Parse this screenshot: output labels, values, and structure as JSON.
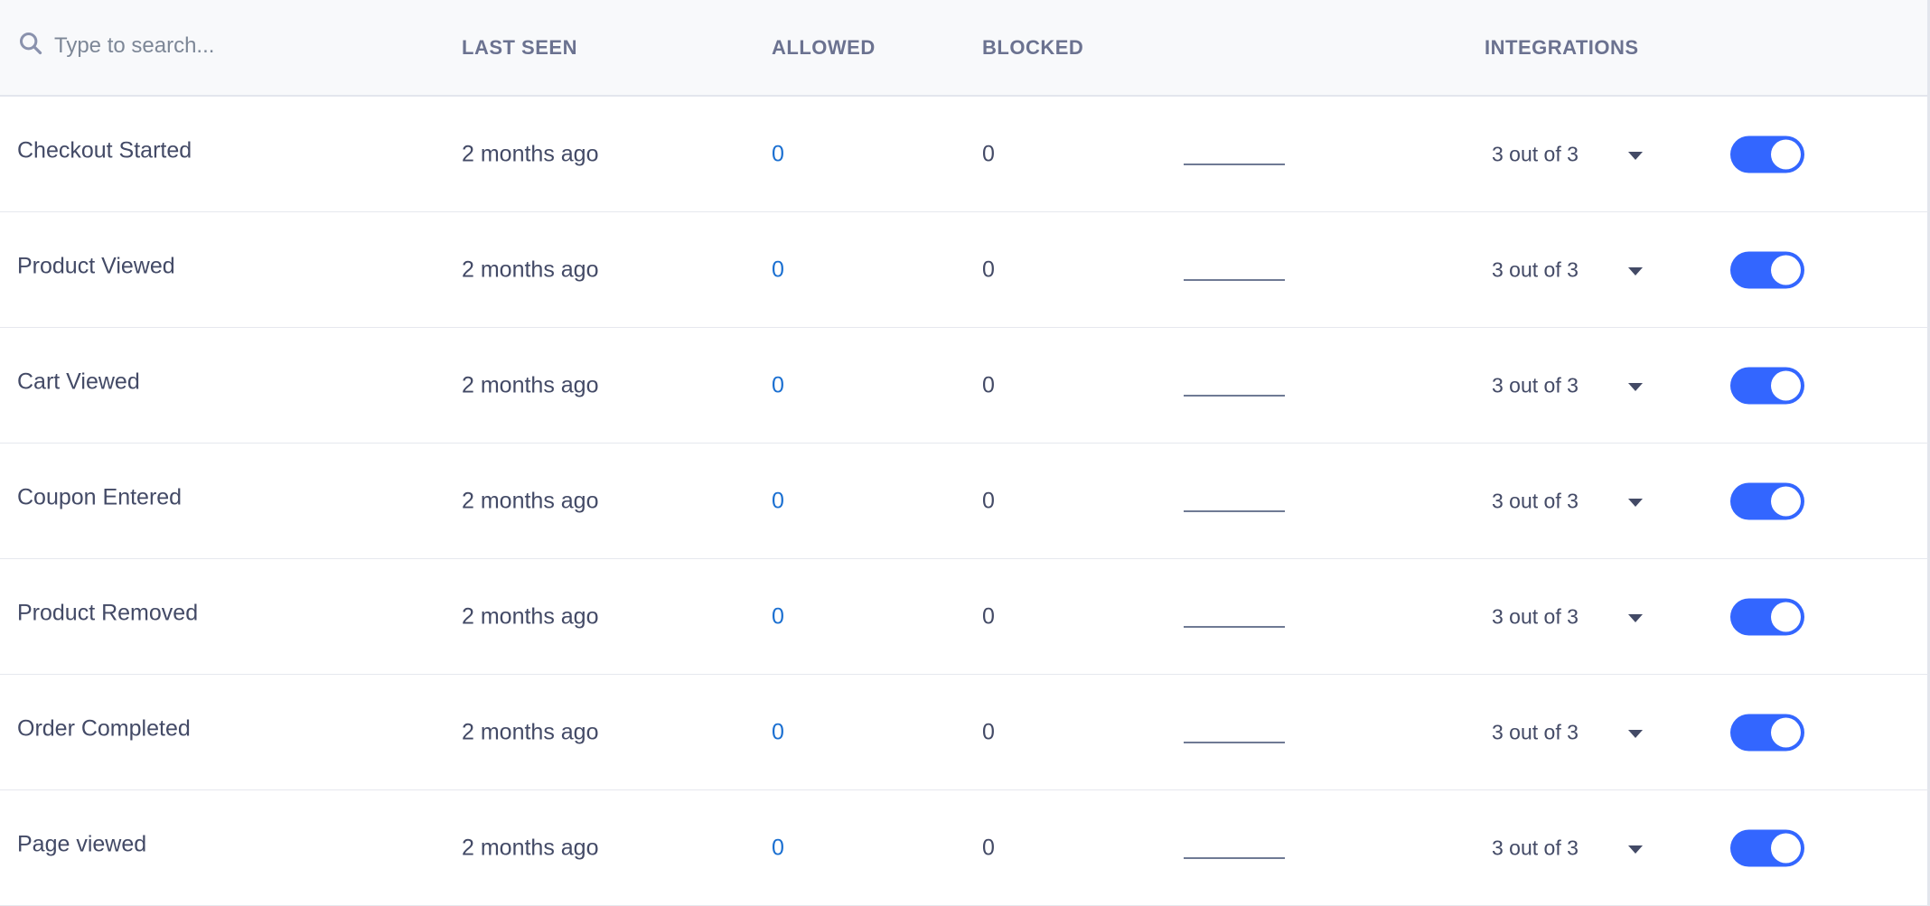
{
  "header": {
    "search_placeholder": "Type to search...",
    "last_seen": "LAST SEEN",
    "allowed": "ALLOWED",
    "blocked": "BLOCKED",
    "integrations": "INTEGRATIONS"
  },
  "colors": {
    "accent": "#3366ff",
    "link": "#1a6fd1",
    "text": "#434a66"
  },
  "rows": [
    {
      "name": "Checkout Started",
      "last_seen": "2 months ago",
      "allowed": "0",
      "blocked": "0",
      "integrations": "3 out of 3",
      "enabled": true
    },
    {
      "name": "Product Viewed",
      "last_seen": "2 months ago",
      "allowed": "0",
      "blocked": "0",
      "integrations": "3 out of 3",
      "enabled": true
    },
    {
      "name": "Cart Viewed",
      "last_seen": "2 months ago",
      "allowed": "0",
      "blocked": "0",
      "integrations": "3 out of 3",
      "enabled": true
    },
    {
      "name": "Coupon Entered",
      "last_seen": "2 months ago",
      "allowed": "0",
      "blocked": "0",
      "integrations": "3 out of 3",
      "enabled": true
    },
    {
      "name": "Product Removed",
      "last_seen": "2 months ago",
      "allowed": "0",
      "blocked": "0",
      "integrations": "3 out of 3",
      "enabled": true
    },
    {
      "name": "Order Completed",
      "last_seen": "2 months ago",
      "allowed": "0",
      "blocked": "0",
      "integrations": "3 out of 3",
      "enabled": true
    },
    {
      "name": "Page viewed",
      "last_seen": "2 months ago",
      "allowed": "0",
      "blocked": "0",
      "integrations": "3 out of 3",
      "enabled": true
    }
  ]
}
